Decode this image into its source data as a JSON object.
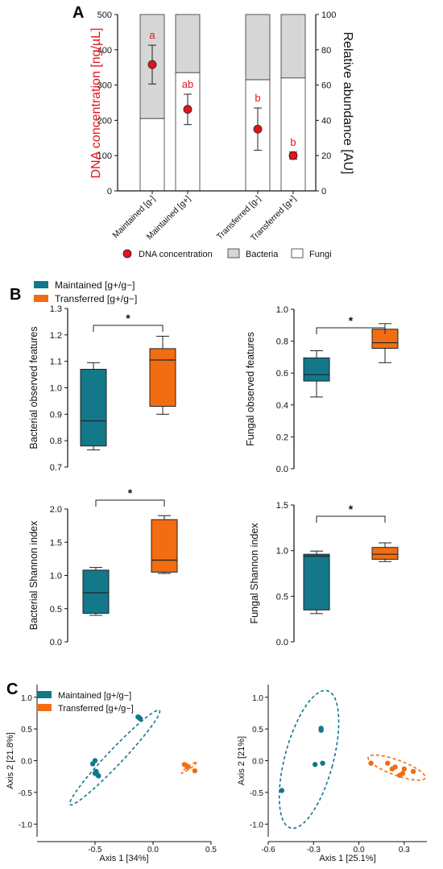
{
  "colors": {
    "maintained": "#12788a",
    "transferred": "#f26d12",
    "dna": "#e3141b",
    "bacteria_fill": "#d6d6d6",
    "fungi_fill": "#ffffff",
    "axis": "#111111"
  },
  "chart_data": [
    {
      "panel": "A",
      "type": "bar",
      "stacked": true,
      "categories": [
        "Maintained [g-]",
        "Maintained [g+]",
        "Transferred [g-]",
        "Transferred [g+]"
      ],
      "ylabel": "DNA concentration [ng/µL]",
      "ylim": [
        0,
        500
      ],
      "yticks": [
        "0",
        "100",
        "200",
        "300",
        "400",
        "500"
      ],
      "y2label": "Relative abundance [AU]",
      "y2lim": [
        0,
        100
      ],
      "y2ticks": [
        "0",
        "20",
        "40",
        "60",
        "80",
        "100"
      ],
      "series": [
        {
          "name": "Fungi",
          "values": [
            41,
            67,
            63,
            64
          ]
        },
        {
          "name": "Bacteria",
          "values": [
            59,
            33,
            37,
            36
          ]
        },
        {
          "name": "DNA concentration",
          "mean": [
            358,
            231,
            175,
            100
          ],
          "err": [
            55,
            43,
            60,
            10
          ]
        }
      ],
      "letters": [
        "a",
        "ab",
        "b",
        "b"
      ],
      "legend": [
        "DNA concentration",
        "Bacteria",
        "Fungi"
      ]
    },
    {
      "panel": "B",
      "type": "box",
      "groups": [
        "Maintained [g+/g−]",
        "Transferred [g+/g−]"
      ],
      "plots": [
        {
          "ylabel": "Bacterial observed features",
          "ylim": [
            0.7,
            1.3
          ],
          "yticks": [
            "0.7",
            "0.8",
            "0.9",
            "1.0",
            "1.1",
            "1.2",
            "1.3"
          ],
          "significance": "*",
          "boxes": [
            {
              "min": 0.765,
              "q1": 0.78,
              "median": 0.875,
              "q3": 1.07,
              "max": 1.095
            },
            {
              "min": 0.9,
              "q1": 0.93,
              "median": 1.105,
              "q3": 1.148,
              "max": 1.195
            }
          ]
        },
        {
          "ylabel": "Fungal observed features",
          "ylim": [
            0.0,
            1.0
          ],
          "yticks": [
            "0.0",
            "0.2",
            "0.4",
            "0.6",
            "0.8",
            "1.0"
          ],
          "significance": "*",
          "boxes": [
            {
              "min": 0.45,
              "q1": 0.55,
              "median": 0.59,
              "q3": 0.695,
              "max": 0.74
            },
            {
              "min": 0.665,
              "q1": 0.755,
              "median": 0.79,
              "q3": 0.875,
              "max": 0.91
            }
          ]
        },
        {
          "ylabel": "Bacterial Shannon index",
          "ylim": [
            0.0,
            2.0
          ],
          "yticks": [
            "0.0",
            "0.5",
            "1.0",
            "1.5",
            "2.0"
          ],
          "significance": "*",
          "boxes": [
            {
              "min": 0.4,
              "q1": 0.43,
              "median": 0.74,
              "q3": 1.08,
              "max": 1.12
            },
            {
              "min": 1.03,
              "q1": 1.05,
              "median": 1.23,
              "q3": 1.84,
              "max": 1.9
            }
          ]
        },
        {
          "ylabel": "Fungal Shannon index",
          "ylim": [
            0.0,
            1.5
          ],
          "yticks": [
            "0.0",
            "0.5",
            "1.0",
            "1.5"
          ],
          "significance": "*",
          "boxes": [
            {
              "min": 0.31,
              "q1": 0.35,
              "median": 0.94,
              "q3": 0.96,
              "max": 0.995
            },
            {
              "min": 0.88,
              "q1": 0.905,
              "median": 0.96,
              "q3": 1.035,
              "max": 1.085
            }
          ]
        }
      ]
    },
    {
      "panel": "C",
      "type": "scatter",
      "legend": [
        "Maintained [g+/g−]",
        "Transferred [g+/g−]"
      ],
      "plots": [
        {
          "xlabel": "Axis 1 [34%]",
          "ylabel": "Axis 2 [21.8%]",
          "xlim": [
            -1.0,
            0.5
          ],
          "ylim": [
            -1.2,
            1.2
          ],
          "xticks": [
            -0.5,
            0.0,
            0.5
          ],
          "xtick_labels": [
            "-0.5",
            "0.0",
            "0.5"
          ],
          "yticks": [
            -1.0,
            -0.5,
            0.0,
            0.5,
            1.0
          ],
          "ytick_labels": [
            "-1.0",
            "-0.5",
            "0.0",
            "0.5",
            "1.0"
          ],
          "maintained": [
            [
              -0.13,
              0.69
            ],
            [
              -0.11,
              0.66
            ],
            [
              -0.12,
              0.68
            ],
            [
              -0.52,
              -0.05
            ],
            [
              -0.5,
              0.0
            ],
            [
              -0.49,
              -0.17
            ],
            [
              -0.47,
              -0.24
            ],
            [
              -0.5,
              -0.2
            ],
            [
              -0.48,
              -0.22
            ]
          ],
          "transferred": [
            [
              0.27,
              -0.06
            ],
            [
              0.3,
              -0.1
            ],
            [
              0.36,
              -0.16
            ],
            [
              0.29,
              -0.08
            ]
          ],
          "ellipses": {
            "maintained": {
              "cx": -0.33,
              "cy": 0.05,
              "rx": 0.56,
              "ry": 0.12,
              "angle_deg": 46.5
            },
            "transferred": {
              "cx": 0.31,
              "cy": -0.11,
              "rx": 0.08,
              "ry": 0.02,
              "angle_deg": 36
            }
          }
        },
        {
          "xlabel": "Axis 1 [25.1%]",
          "ylabel": "Axis 2 [21%]",
          "xlim": [
            -0.6,
            0.45
          ],
          "ylim": [
            -1.2,
            1.2
          ],
          "xticks": [
            -0.6,
            -0.3,
            0.0,
            0.3
          ],
          "xtick_labels": [
            "-0.6",
            "-0.3",
            "0.0",
            "0.3"
          ],
          "yticks": [
            -1.0,
            -0.5,
            0.0,
            0.5,
            1.0
          ],
          "ytick_labels": [
            "-1.0",
            "-0.5",
            "0.0",
            "0.5",
            "1.0"
          ],
          "maintained": [
            [
              -0.25,
              0.51
            ],
            [
              -0.25,
              0.48
            ],
            [
              -0.24,
              -0.04
            ],
            [
              -0.29,
              -0.06
            ],
            [
              -0.51,
              -0.47
            ]
          ],
          "transferred": [
            [
              0.08,
              -0.04
            ],
            [
              0.24,
              -0.1
            ],
            [
              0.3,
              -0.13
            ],
            [
              0.36,
              -0.17
            ],
            [
              0.22,
              -0.13
            ],
            [
              0.19,
              -0.04
            ],
            [
              0.27,
              -0.23
            ],
            [
              0.29,
              -0.2
            ]
          ],
          "ellipses": {
            "maintained": {
              "cx": -0.33,
              "cy": 0.02,
              "rx": 0.16,
              "ry": 1.12,
              "angle_deg": -15
            },
            "transferred": {
              "cx": 0.25,
              "cy": -0.11,
              "rx": 0.2,
              "ry": 0.12,
              "angle_deg": -20
            }
          }
        }
      ]
    }
  ]
}
